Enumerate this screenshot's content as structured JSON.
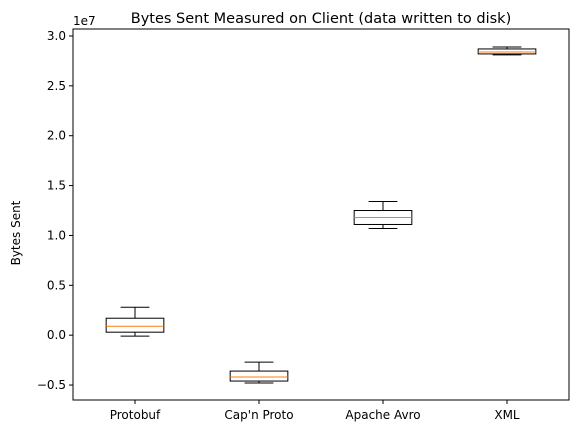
{
  "chart_data": {
    "type": "box",
    "title": "Bytes Sent Measured on Client (data written to disk)",
    "xlabel": "",
    "ylabel": "Bytes Sent",
    "y_offset_label": "1e7",
    "y_scale": 10000000,
    "ylim": [
      -0.65,
      3.07
    ],
    "yticks": [
      -0.5,
      0.0,
      0.5,
      1.0,
      1.5,
      2.0,
      2.5,
      3.0
    ],
    "ytick_labels": [
      "−0.5",
      "0.0",
      "0.5",
      "1.0",
      "1.5",
      "2.0",
      "2.5",
      "3.0"
    ],
    "grid": false,
    "categories": [
      "Protobuf",
      "Cap'n Proto",
      "Apache Avro",
      "XML"
    ],
    "boxes": [
      {
        "category": "Protobuf",
        "whisker_low": -0.01,
        "q1": 0.03,
        "median": 0.09,
        "q3": 0.17,
        "whisker_high": 0.28
      },
      {
        "category": "Cap'n Proto",
        "whisker_low": -0.48,
        "q1": -0.46,
        "median": -0.42,
        "q3": -0.36,
        "whisker_high": -0.27
      },
      {
        "category": "Apache Avro",
        "whisker_low": 1.07,
        "q1": 1.11,
        "median": 1.18,
        "q3": 1.25,
        "whisker_high": 1.34
      },
      {
        "category": "XML",
        "whisker_low": 2.81,
        "q1": 2.82,
        "median": 2.84,
        "q3": 2.87,
        "whisker_high": 2.89
      }
    ],
    "colors": {
      "box": "#000000",
      "median": "#ff7f0e",
      "axes": "#000000"
    }
  }
}
